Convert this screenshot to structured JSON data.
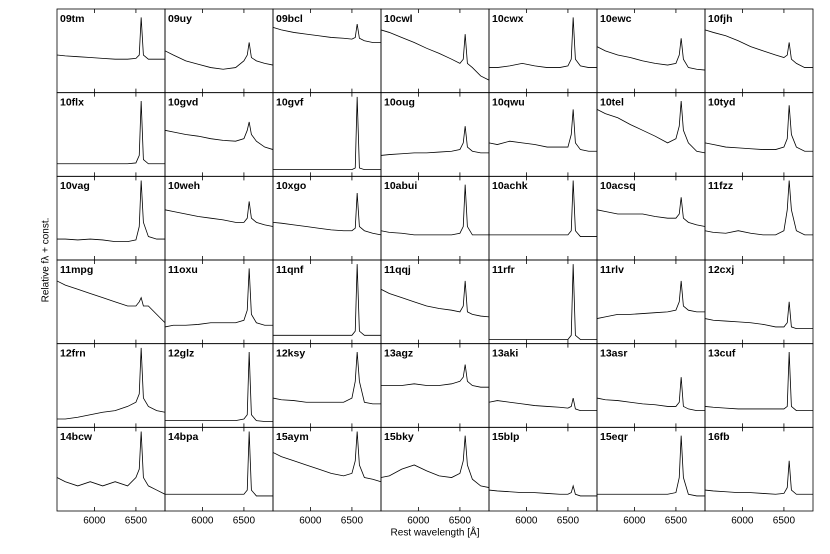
{
  "chart_data": {
    "type": "line",
    "xlabel": "Rest wavelength [Å]",
    "ylabel": "Relative fλ + const.",
    "xlim": [
      5550,
      6850
    ],
    "xticks": [
      6000,
      6500
    ],
    "ylim": [
      0,
      1
    ],
    "columns": 7,
    "x": [
      5550,
      5650,
      5800,
      5950,
      6100,
      6250,
      6400,
      6500,
      6540,
      6563,
      6590,
      6650,
      6750,
      6850
    ],
    "panels": [
      {
        "title": "09tm",
        "values": [
          0.45,
          0.44,
          0.43,
          0.42,
          0.41,
          0.4,
          0.4,
          0.41,
          0.45,
          0.9,
          0.45,
          0.4,
          0.4,
          0.4
        ]
      },
      {
        "title": "09uy",
        "values": [
          0.5,
          0.45,
          0.38,
          0.34,
          0.3,
          0.28,
          0.3,
          0.38,
          0.45,
          0.6,
          0.42,
          0.38,
          0.35,
          0.33
        ]
      },
      {
        "title": "09bcl",
        "values": [
          0.78,
          0.75,
          0.72,
          0.7,
          0.68,
          0.66,
          0.65,
          0.64,
          0.66,
          0.82,
          0.65,
          0.62,
          0.6,
          0.6
        ]
      },
      {
        "title": "10cwl",
        "values": [
          0.75,
          0.72,
          0.66,
          0.6,
          0.53,
          0.47,
          0.4,
          0.35,
          0.4,
          0.7,
          0.35,
          0.3,
          0.2,
          0.15
        ]
      },
      {
        "title": "10cwx",
        "values": [
          0.3,
          0.3,
          0.32,
          0.35,
          0.32,
          0.3,
          0.3,
          0.32,
          0.4,
          0.9,
          0.4,
          0.32,
          0.3,
          0.3
        ]
      },
      {
        "title": "10ewc",
        "values": [
          0.55,
          0.5,
          0.45,
          0.42,
          0.38,
          0.35,
          0.33,
          0.35,
          0.45,
          0.65,
          0.4,
          0.3,
          0.28,
          0.27
        ]
      },
      {
        "title": "10fjh",
        "values": [
          0.75,
          0.72,
          0.68,
          0.62,
          0.55,
          0.5,
          0.45,
          0.42,
          0.45,
          0.6,
          0.4,
          0.35,
          0.3,
          0.3
        ]
      },
      {
        "title": "10flx",
        "values": [
          0.15,
          0.15,
          0.15,
          0.15,
          0.15,
          0.15,
          0.15,
          0.16,
          0.25,
          0.9,
          0.2,
          0.15,
          0.15,
          0.15
        ]
      },
      {
        "title": "10gvd",
        "values": [
          0.55,
          0.53,
          0.5,
          0.48,
          0.45,
          0.43,
          0.42,
          0.45,
          0.55,
          0.65,
          0.5,
          0.42,
          0.35,
          0.32
        ]
      },
      {
        "title": "10gvf",
        "values": [
          0.08,
          0.08,
          0.08,
          0.08,
          0.08,
          0.08,
          0.08,
          0.08,
          0.1,
          0.95,
          0.1,
          0.08,
          0.08,
          0.08
        ]
      },
      {
        "title": "10oug",
        "values": [
          0.25,
          0.26,
          0.27,
          0.28,
          0.28,
          0.29,
          0.3,
          0.32,
          0.4,
          0.6,
          0.35,
          0.3,
          0.28,
          0.28
        ]
      },
      {
        "title": "10qwu",
        "values": [
          0.4,
          0.38,
          0.42,
          0.4,
          0.38,
          0.35,
          0.35,
          0.35,
          0.5,
          0.8,
          0.4,
          0.32,
          0.3,
          0.3
        ]
      },
      {
        "title": "10tel",
        "values": [
          0.8,
          0.75,
          0.7,
          0.62,
          0.55,
          0.48,
          0.4,
          0.45,
          0.6,
          0.9,
          0.55,
          0.4,
          0.3,
          0.28
        ]
      },
      {
        "title": "10tyd",
        "values": [
          0.4,
          0.38,
          0.35,
          0.34,
          0.33,
          0.32,
          0.32,
          0.35,
          0.45,
          0.85,
          0.5,
          0.35,
          0.3,
          0.3
        ]
      },
      {
        "title": "10vag",
        "values": [
          0.25,
          0.25,
          0.24,
          0.25,
          0.24,
          0.22,
          0.22,
          0.24,
          0.4,
          0.95,
          0.45,
          0.28,
          0.25,
          0.25
        ]
      },
      {
        "title": "10weh",
        "values": [
          0.6,
          0.58,
          0.55,
          0.52,
          0.5,
          0.48,
          0.45,
          0.45,
          0.5,
          0.7,
          0.5,
          0.45,
          0.42,
          0.4
        ]
      },
      {
        "title": "10xgo",
        "values": [
          0.45,
          0.44,
          0.42,
          0.4,
          0.38,
          0.36,
          0.35,
          0.35,
          0.38,
          0.8,
          0.4,
          0.35,
          0.32,
          0.3
        ]
      },
      {
        "title": "10abui",
        "values": [
          0.35,
          0.33,
          0.32,
          0.3,
          0.3,
          0.3,
          0.3,
          0.32,
          0.4,
          0.9,
          0.4,
          0.3,
          0.3,
          0.3
        ]
      },
      {
        "title": "10achk",
        "values": [
          0.3,
          0.3,
          0.3,
          0.3,
          0.3,
          0.3,
          0.3,
          0.3,
          0.35,
          0.95,
          0.35,
          0.28,
          0.28,
          0.28
        ]
      },
      {
        "title": "10acsq",
        "values": [
          0.6,
          0.58,
          0.55,
          0.55,
          0.55,
          0.52,
          0.5,
          0.5,
          0.55,
          0.75,
          0.5,
          0.45,
          0.42,
          0.4
        ]
      },
      {
        "title": "11fzz",
        "values": [
          0.35,
          0.33,
          0.32,
          0.35,
          0.32,
          0.3,
          0.3,
          0.35,
          0.6,
          0.95,
          0.6,
          0.35,
          0.3,
          0.3
        ]
      },
      {
        "title": "11mpg",
        "values": [
          0.75,
          0.7,
          0.65,
          0.6,
          0.55,
          0.5,
          0.45,
          0.45,
          0.5,
          0.55,
          0.45,
          0.45,
          0.35,
          0.25
        ]
      },
      {
        "title": "11oxu",
        "values": [
          0.2,
          0.22,
          0.22,
          0.23,
          0.25,
          0.25,
          0.25,
          0.28,
          0.4,
          0.9,
          0.35,
          0.25,
          0.22,
          0.22
        ]
      },
      {
        "title": "11qnf",
        "values": [
          0.1,
          0.1,
          0.1,
          0.1,
          0.1,
          0.1,
          0.1,
          0.1,
          0.15,
          0.95,
          0.15,
          0.1,
          0.1,
          0.1
        ]
      },
      {
        "title": "11qqj",
        "values": [
          0.65,
          0.6,
          0.55,
          0.5,
          0.45,
          0.42,
          0.4,
          0.38,
          0.45,
          0.75,
          0.38,
          0.35,
          0.33,
          0.32
        ]
      },
      {
        "title": "11rfr",
        "values": [
          0.05,
          0.05,
          0.05,
          0.05,
          0.05,
          0.05,
          0.05,
          0.05,
          0.1,
          0.95,
          0.1,
          0.05,
          0.05,
          0.05
        ]
      },
      {
        "title": "11rlv",
        "values": [
          0.3,
          0.32,
          0.35,
          0.35,
          0.36,
          0.37,
          0.38,
          0.4,
          0.5,
          0.75,
          0.45,
          0.4,
          0.38,
          0.38
        ]
      },
      {
        "title": "12cxj",
        "values": [
          0.3,
          0.28,
          0.27,
          0.26,
          0.25,
          0.23,
          0.2,
          0.2,
          0.25,
          0.5,
          0.2,
          0.18,
          0.18,
          0.18
        ]
      },
      {
        "title": "12frn",
        "values": [
          0.1,
          0.1,
          0.12,
          0.15,
          0.18,
          0.2,
          0.25,
          0.3,
          0.4,
          0.95,
          0.35,
          0.25,
          0.2,
          0.18
        ]
      },
      {
        "title": "12glz",
        "values": [
          0.08,
          0.08,
          0.08,
          0.08,
          0.08,
          0.08,
          0.08,
          0.1,
          0.15,
          0.9,
          0.15,
          0.08,
          0.07,
          0.07
        ]
      },
      {
        "title": "12ksy",
        "values": [
          0.35,
          0.33,
          0.32,
          0.3,
          0.3,
          0.3,
          0.3,
          0.35,
          0.55,
          0.9,
          0.55,
          0.3,
          0.28,
          0.28
        ]
      },
      {
        "title": "13agz",
        "values": [
          0.5,
          0.5,
          0.5,
          0.52,
          0.5,
          0.5,
          0.52,
          0.55,
          0.6,
          0.75,
          0.55,
          0.5,
          0.48,
          0.48
        ]
      },
      {
        "title": "13aki",
        "values": [
          0.3,
          0.32,
          0.3,
          0.28,
          0.26,
          0.25,
          0.24,
          0.23,
          0.25,
          0.35,
          0.22,
          0.2,
          0.2,
          0.2
        ]
      },
      {
        "title": "13asr",
        "values": [
          0.35,
          0.33,
          0.32,
          0.3,
          0.28,
          0.27,
          0.25,
          0.25,
          0.3,
          0.6,
          0.25,
          0.22,
          0.2,
          0.2
        ]
      },
      {
        "title": "13cuf",
        "values": [
          0.25,
          0.24,
          0.23,
          0.22,
          0.22,
          0.22,
          0.22,
          0.22,
          0.25,
          0.9,
          0.25,
          0.2,
          0.2,
          0.2
        ]
      },
      {
        "title": "14bcw",
        "values": [
          0.4,
          0.35,
          0.3,
          0.35,
          0.3,
          0.35,
          0.3,
          0.4,
          0.5,
          0.95,
          0.4,
          0.3,
          0.25,
          0.2
        ]
      },
      {
        "title": "14bpa",
        "values": [
          0.2,
          0.2,
          0.2,
          0.2,
          0.2,
          0.2,
          0.2,
          0.2,
          0.25,
          0.95,
          0.25,
          0.18,
          0.18,
          0.18
        ]
      },
      {
        "title": "15aym",
        "values": [
          0.7,
          0.65,
          0.6,
          0.55,
          0.5,
          0.45,
          0.42,
          0.45,
          0.6,
          0.95,
          0.55,
          0.4,
          0.38,
          0.35
        ]
      },
      {
        "title": "15bky",
        "values": [
          0.4,
          0.42,
          0.5,
          0.55,
          0.48,
          0.42,
          0.4,
          0.45,
          0.6,
          0.9,
          0.55,
          0.38,
          0.3,
          0.28
        ]
      },
      {
        "title": "15blp",
        "values": [
          0.25,
          0.24,
          0.23,
          0.22,
          0.22,
          0.21,
          0.2,
          0.2,
          0.22,
          0.3,
          0.2,
          0.18,
          0.18,
          0.18
        ]
      },
      {
        "title": "15eqr",
        "values": [
          0.2,
          0.2,
          0.2,
          0.2,
          0.2,
          0.2,
          0.2,
          0.22,
          0.4,
          0.9,
          0.4,
          0.2,
          0.18,
          0.18
        ]
      },
      {
        "title": "16fb",
        "values": [
          0.25,
          0.24,
          0.23,
          0.22,
          0.22,
          0.21,
          0.2,
          0.21,
          0.28,
          0.6,
          0.25,
          0.2,
          0.2,
          0.2
        ]
      }
    ]
  }
}
